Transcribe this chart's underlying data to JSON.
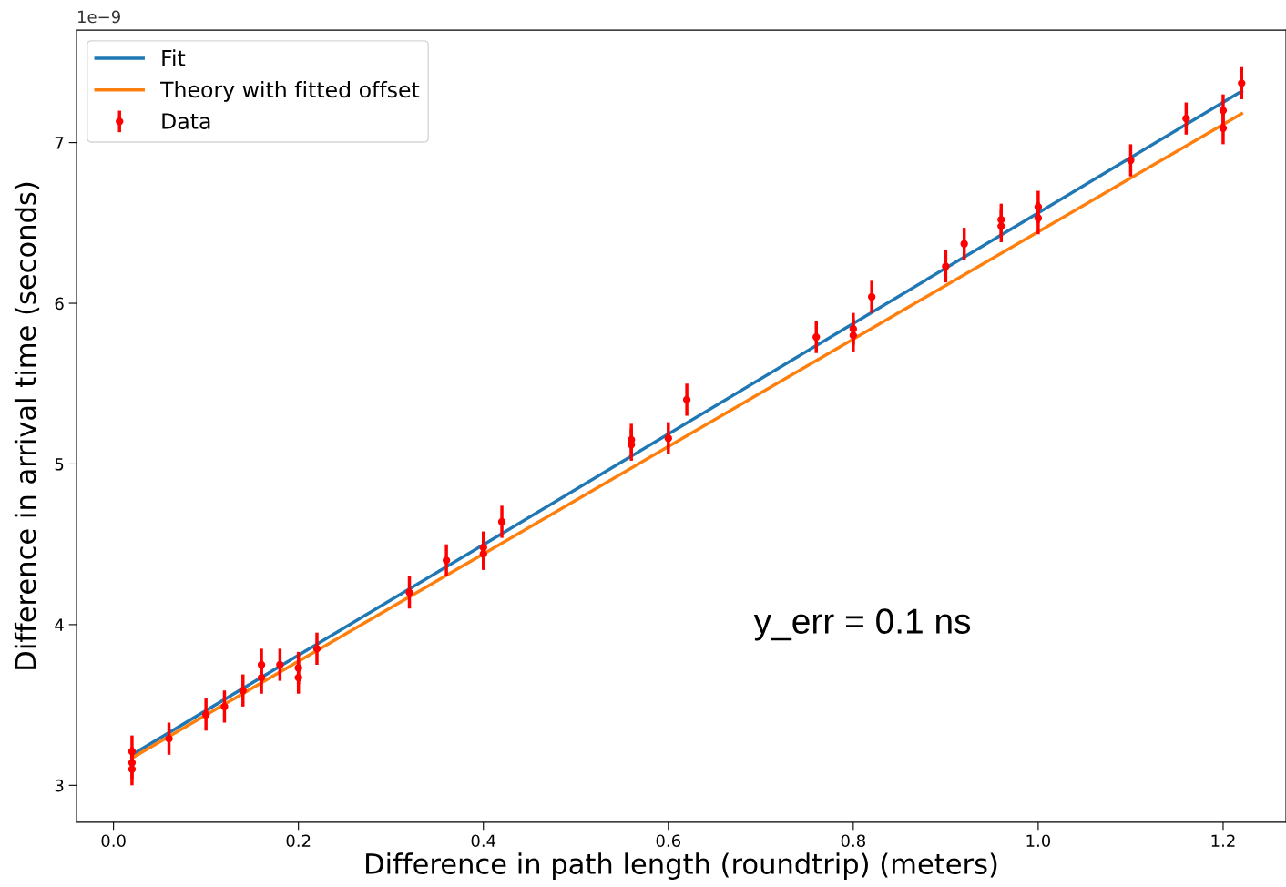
{
  "chart_data": {
    "type": "scatter",
    "xlabel": "Difference in path length (roundtrip) (meters)",
    "ylabel": "Difference in arrival time (seconds)",
    "annotations": [
      "1e−9",
      "y_err = 0.1 ns"
    ],
    "xlim": [
      -0.04,
      1.268
    ],
    "ylim": [
      2.77,
      7.7
    ],
    "xticks": [
      {
        "value": 0,
        "label": "0.0"
      },
      0.2,
      0.4,
      0.6,
      0.8,
      {
        "value": 1,
        "label": "1.0"
      },
      1.2
    ],
    "yticks": [
      3,
      4,
      5,
      6,
      7
    ],
    "grid": false,
    "legend": "top left",
    "series": [
      {
        "name": "Fit",
        "type": "line",
        "color": "#1f77b4",
        "marker": "none",
        "line_style": "solid",
        "x": [
          0.02,
          1.22
        ],
        "values": [
          3.19,
          7.32
        ]
      },
      {
        "name": "Theory with fitted offset",
        "type": "line",
        "color": "#ff7f0e",
        "marker": "none",
        "line_style": "solid",
        "x": [
          0.02,
          1.22
        ],
        "values": [
          3.17,
          7.18
        ]
      },
      {
        "name": "Data",
        "color": "#ff0000",
        "marker": "circle",
        "x": [
          0.02,
          0.02,
          0.02,
          0.06,
          0.1,
          0.12,
          0.14,
          0.16,
          0.16,
          0.18,
          0.2,
          0.2,
          0.22,
          0.32,
          0.36,
          0.4,
          0.4,
          0.42,
          0.56,
          0.56,
          0.6,
          0.62,
          0.76,
          0.8,
          0.8,
          0.82,
          0.9,
          0.92,
          0.96,
          0.96,
          1.0,
          1.0,
          1.1,
          1.16,
          1.2,
          1.2,
          1.22
        ],
        "values": [
          3.21,
          3.14,
          3.1,
          3.29,
          3.44,
          3.49,
          3.59,
          3.75,
          3.67,
          3.75,
          3.73,
          3.67,
          3.85,
          4.2,
          4.4,
          4.48,
          4.44,
          4.64,
          5.15,
          5.12,
          5.16,
          5.4,
          5.79,
          5.84,
          5.8,
          6.04,
          6.23,
          6.37,
          6.52,
          6.48,
          6.6,
          6.53,
          6.89,
          7.15,
          7.2,
          7.09,
          7.37
        ],
        "errors": [
          0.1,
          0.1,
          0.1,
          0.1,
          0.1,
          0.1,
          0.1,
          0.1,
          0.1,
          0.1,
          0.1,
          0.1,
          0.1,
          0.1,
          0.1,
          0.1,
          0.1,
          0.1,
          0.1,
          0.1,
          0.1,
          0.1,
          0.1,
          0.1,
          0.1,
          0.1,
          0.1,
          0.1,
          0.1,
          0.1,
          0.1,
          0.1,
          0.1,
          0.1,
          0.1,
          0.1,
          0.1
        ]
      }
    ]
  }
}
